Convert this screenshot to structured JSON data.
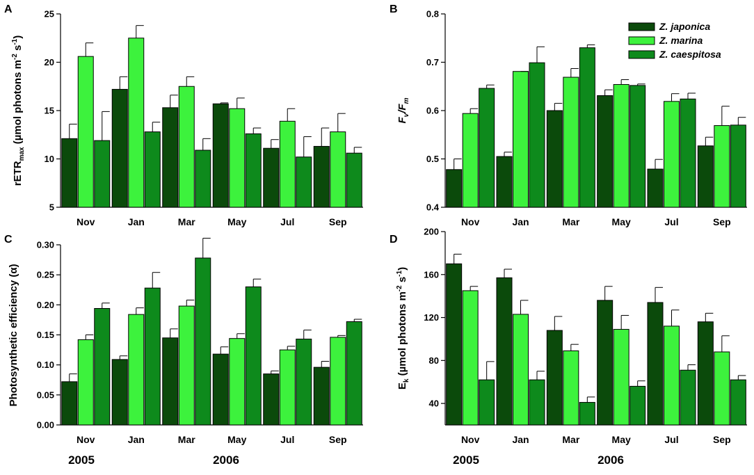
{
  "colors": {
    "japonica": "#0b4a0b",
    "marina": "#3df23d",
    "caespitosa": "#0e8a1c",
    "stroke": "#000000"
  },
  "legend": [
    "Z. japonica",
    "Z. marina",
    "Z. caespitosa"
  ],
  "years": [
    "2005",
    "2006"
  ],
  "chart_data": [
    {
      "panel": "A",
      "type": "bar",
      "ylabel": "rETRmax (µmol photons m-2 s-1)",
      "ylabel_parts": {
        "base": "rETR",
        "sub": "max",
        "unit_open": " (µmol photons m",
        "exp1": "-2",
        "unit_mid": " s",
        "exp2": "-1",
        "unit_close": ")"
      },
      "categories": [
        "Nov",
        "Jan",
        "Mar",
        "May",
        "Jul",
        "Sep"
      ],
      "ylim": [
        5,
        25
      ],
      "yticks": [
        "5",
        "10",
        "15",
        "20",
        "25"
      ],
      "yticks_values": [
        5,
        10,
        15,
        20,
        25
      ],
      "series": [
        {
          "name": "Z. japonica",
          "values": [
            12.1,
            17.2,
            15.3,
            15.7,
            11.1,
            11.3
          ],
          "errors": [
            1.5,
            1.3,
            1.3,
            0.1,
            0.9,
            1.9
          ]
        },
        {
          "name": "Z. marina",
          "values": [
            20.6,
            22.5,
            17.5,
            15.2,
            13.9,
            12.8
          ],
          "errors": [
            1.4,
            1.3,
            1.0,
            1.1,
            1.3,
            1.9
          ]
        },
        {
          "name": "Z. caespitosa",
          "values": [
            11.9,
            12.8,
            10.9,
            12.6,
            10.2,
            10.6
          ],
          "errors": [
            3.0,
            1.0,
            1.2,
            0.6,
            2.1,
            0.6
          ]
        }
      ]
    },
    {
      "panel": "B",
      "type": "bar",
      "ylabel": "Fv/Fm",
      "ylabel_parts": {
        "f1": "F",
        "sub1": "v",
        "slash": "/",
        "f2": "F",
        "sub2": "m"
      },
      "categories": [
        "Nov",
        "Jan",
        "Mar",
        "May",
        "Jul",
        "Sep"
      ],
      "ylim": [
        0.4,
        0.8
      ],
      "yticks": [
        "0.4",
        "0.5",
        "0.6",
        "0.7",
        "0.8"
      ],
      "yticks_values": [
        0.4,
        0.5,
        0.6,
        0.7,
        0.8
      ],
      "series": [
        {
          "name": "Z. japonica",
          "values": [
            0.478,
            0.505,
            0.6,
            0.631,
            0.479,
            0.527
          ],
          "errors": [
            0.022,
            0.009,
            0.015,
            0.012,
            0.02,
            0.018
          ]
        },
        {
          "name": "Z. marina",
          "values": [
            0.594,
            0.681,
            0.669,
            0.654,
            0.619,
            0.569
          ],
          "errors": [
            0.01,
            0.0,
            0.018,
            0.01,
            0.016,
            0.04
          ]
        },
        {
          "name": "Z. caespitosa",
          "values": [
            0.646,
            0.699,
            0.73,
            0.652,
            0.624,
            0.57
          ],
          "errors": [
            0.007,
            0.033,
            0.006,
            0.003,
            0.012,
            0.016
          ]
        }
      ]
    },
    {
      "panel": "C",
      "type": "bar",
      "ylabel": "Photosynthetic efficiency (α)",
      "categories": [
        "Nov",
        "Jan",
        "Mar",
        "May",
        "Jul",
        "Sep"
      ],
      "ylim": [
        0,
        0.3
      ],
      "yticks": [
        "0.00",
        "0.05",
        "0.10",
        "0.15",
        "0.20",
        "0.25",
        "0.30"
      ],
      "yticks_values": [
        0,
        0.05,
        0.1,
        0.15,
        0.2,
        0.25,
        0.3
      ],
      "series": [
        {
          "name": "Z. japonica",
          "values": [
            0.072,
            0.109,
            0.145,
            0.118,
            0.085,
            0.096
          ],
          "errors": [
            0.013,
            0.006,
            0.015,
            0.012,
            0.005,
            0.01
          ]
        },
        {
          "name": "Z. marina",
          "values": [
            0.142,
            0.184,
            0.198,
            0.144,
            0.125,
            0.146
          ],
          "errors": [
            0.008,
            0.011,
            0.01,
            0.008,
            0.006,
            0.003
          ]
        },
        {
          "name": "Z. caespitosa",
          "values": [
            0.194,
            0.228,
            0.278,
            0.23,
            0.143,
            0.172
          ],
          "errors": [
            0.009,
            0.026,
            0.033,
            0.013,
            0.015,
            0.004
          ]
        }
      ]
    },
    {
      "panel": "D",
      "type": "bar",
      "ylabel": "Ek (µmol photons m-2 s-1)",
      "ylabel_parts": {
        "base": "E",
        "sub": "k",
        "unit_open": " (µmol photons m",
        "exp1": "-2",
        "unit_mid": " s",
        "exp2": "-1",
        "unit_close": ")"
      },
      "categories": [
        "Nov",
        "Jan",
        "Mar",
        "May",
        "Jul",
        "Sep"
      ],
      "ylim": [
        20,
        200
      ],
      "yticks": [
        "40",
        "80",
        "120",
        "160",
        "200"
      ],
      "yticks_values": [
        40,
        80,
        120,
        160,
        200
      ],
      "series": [
        {
          "name": "Z. japonica",
          "values": [
            170,
            157,
            108,
            136,
            134,
            116
          ],
          "errors": [
            9,
            8,
            13,
            13,
            14,
            8
          ]
        },
        {
          "name": "Z. marina",
          "values": [
            145,
            123,
            89,
            109,
            112,
            88
          ],
          "errors": [
            4,
            13,
            6,
            13,
            15,
            15
          ]
        },
        {
          "name": "Z. caespitosa",
          "values": [
            62,
            62,
            41,
            56,
            71,
            62
          ],
          "errors": [
            17,
            8,
            5,
            5,
            5,
            4
          ]
        }
      ]
    }
  ]
}
